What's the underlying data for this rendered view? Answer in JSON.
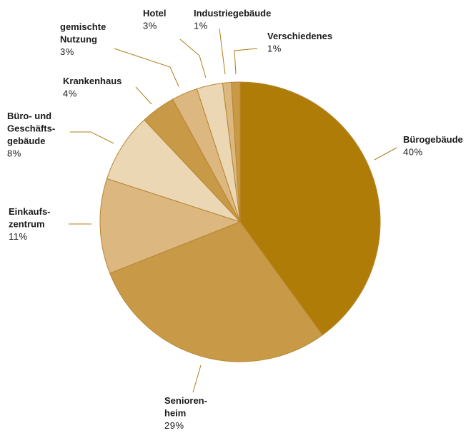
{
  "chart_data": {
    "type": "pie",
    "start": "12 o'clock",
    "direction": "clockwise",
    "slices": [
      {
        "label": [
          "Bürogebäude"
        ],
        "value": 40,
        "display": "40%",
        "color": "#b07c08"
      },
      {
        "label": [
          "Senioren-",
          "heim"
        ],
        "value": 29,
        "display": "29%",
        "color": "#c89a48"
      },
      {
        "label": [
          "Einkaufs-",
          "zentrum"
        ],
        "value": 11,
        "display": "11%",
        "color": "#dcb780"
      },
      {
        "label": [
          "Büro- und",
          "Geschäfts-",
          "gebäude"
        ],
        "value": 8,
        "display": "8%",
        "color": "#ecd7b5"
      },
      {
        "label": [
          "Krankenhaus"
        ],
        "value": 4,
        "display": "4%",
        "color": "#c89a48"
      },
      {
        "label": [
          "gemischte",
          "Nutzung"
        ],
        "value": 3,
        "display": "3%",
        "color": "#dcb780"
      },
      {
        "label": [
          "Hotel"
        ],
        "value": 3,
        "display": "3%",
        "color": "#ecd7b5"
      },
      {
        "label": [
          "Industriegebäude"
        ],
        "value": 1,
        "display": "1%",
        "color": "#dcb780"
      },
      {
        "label": [
          "Verschiedenes"
        ],
        "value": 1,
        "display": "1%",
        "color": "#c89a48"
      }
    ]
  }
}
